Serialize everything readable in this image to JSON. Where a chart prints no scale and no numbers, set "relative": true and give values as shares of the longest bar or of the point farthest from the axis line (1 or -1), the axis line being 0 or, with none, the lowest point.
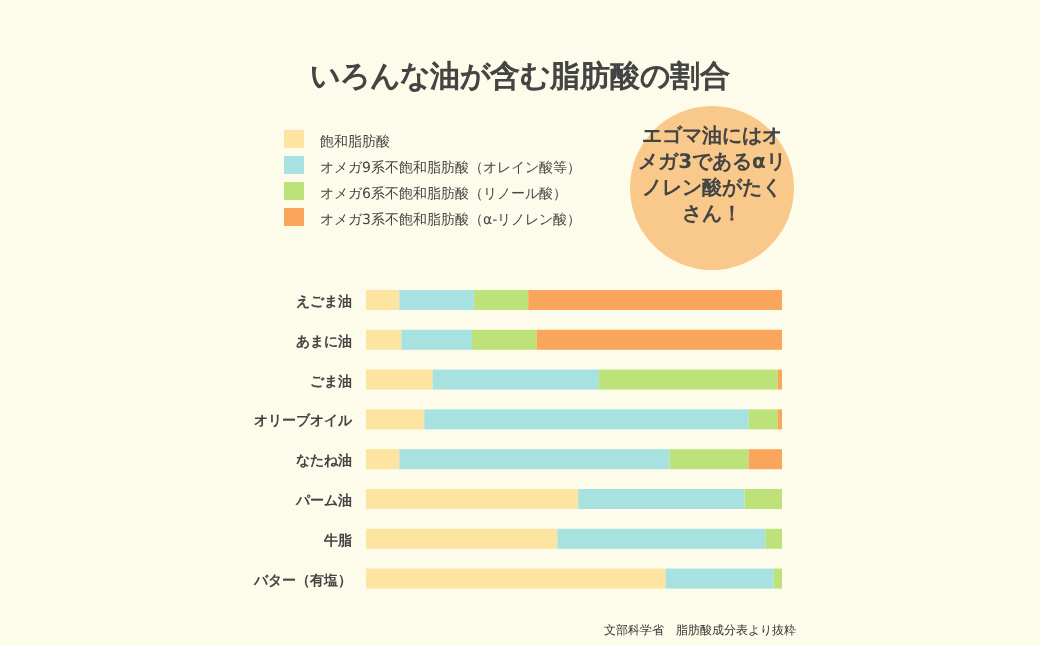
{
  "chart_data": {
    "type": "bar",
    "orientation": "horizontal",
    "stacked": true,
    "relative": true,
    "title": "いろんな油が含む脂肪酸の割合",
    "legend": "top left",
    "categories": [
      "えごま油",
      "あまに油",
      "ごま油",
      "オリーブオイル",
      "なたね油",
      "パーム油",
      "牛脂",
      "バター（有塩）"
    ],
    "series": [
      {
        "name": "飽和脂肪酸",
        "color": "#fde4a0",
        "values": [
          0.08,
          0.085,
          0.16,
          0.14,
          0.08,
          0.51,
          0.46,
          0.72
        ]
      },
      {
        "name": "オメガ9系不飽和脂肪酸（オレイン酸等）",
        "color": "#a8e2e0",
        "values": [
          0.18,
          0.17,
          0.4,
          0.78,
          0.65,
          0.4,
          0.5,
          0.26
        ]
      },
      {
        "name": "オメガ6系不飽和脂肪酸（リノール酸）",
        "color": "#bde27a",
        "values": [
          0.13,
          0.155,
          0.43,
          0.07,
          0.19,
          0.09,
          0.04,
          0.02
        ]
      },
      {
        "name": "オメガ3系不飽和脂肪酸（α-リノレン酸）",
        "color": "#f9a55c",
        "values": [
          0.61,
          0.59,
          0.01,
          0.01,
          0.08,
          0,
          0,
          0
        ]
      }
    ],
    "annotations": [
      "エゴマ油にはオメガ3であるαリノレン酸がたくさん！",
      "文部科学省　脂肪酸成分表より抜粋"
    ]
  }
}
